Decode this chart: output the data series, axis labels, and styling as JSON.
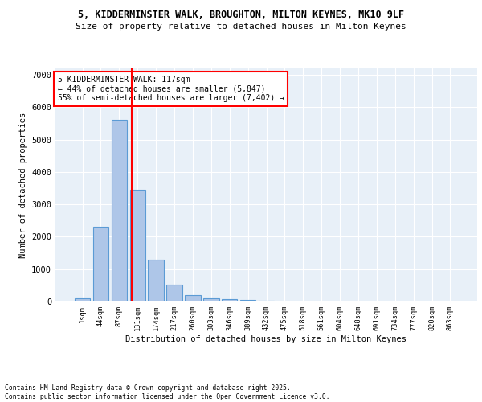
{
  "title1": "5, KIDDERMINSTER WALK, BROUGHTON, MILTON KEYNES, MK10 9LF",
  "title2": "Size of property relative to detached houses in Milton Keynes",
  "xlabel": "Distribution of detached houses by size in Milton Keynes",
  "ylabel": "Number of detached properties",
  "bin_labels": [
    "1sqm",
    "44sqm",
    "87sqm",
    "131sqm",
    "174sqm",
    "217sqm",
    "260sqm",
    "303sqm",
    "346sqm",
    "389sqm",
    "432sqm",
    "475sqm",
    "518sqm",
    "561sqm",
    "604sqm",
    "648sqm",
    "691sqm",
    "734sqm",
    "777sqm",
    "820sqm",
    "863sqm"
  ],
  "bar_values": [
    100,
    2300,
    5600,
    3450,
    1300,
    520,
    190,
    100,
    70,
    40,
    15,
    5,
    2,
    1,
    0,
    0,
    0,
    0,
    0,
    0,
    0
  ],
  "bar_color": "#aec6e8",
  "bar_edge_color": "#5b9bd5",
  "vline_color": "red",
  "annotation_text": "5 KIDDERMINSTER WALK: 117sqm\n← 44% of detached houses are smaller (5,847)\n55% of semi-detached houses are larger (7,402) →",
  "annotation_box_color": "white",
  "annotation_box_edge_color": "red",
  "ylim": [
    0,
    7200
  ],
  "yticks": [
    0,
    1000,
    2000,
    3000,
    4000,
    5000,
    6000,
    7000
  ],
  "bg_color": "#e8f0f8",
  "footer_text": "Contains HM Land Registry data © Crown copyright and database right 2025.\nContains public sector information licensed under the Open Government Licence v3.0.",
  "title_fontsize": 8.5,
  "subtitle_fontsize": 8
}
